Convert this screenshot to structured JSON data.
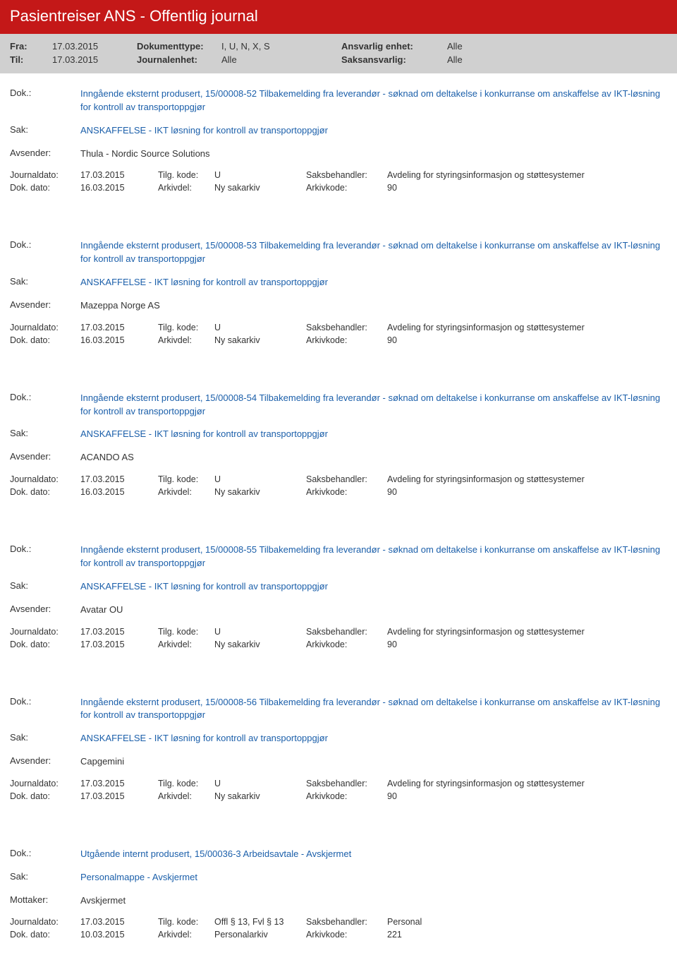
{
  "header": {
    "title": "Pasientreiser ANS - Offentlig journal"
  },
  "filter": {
    "fra_label": "Fra:",
    "fra_value": "17.03.2015",
    "til_label": "Til:",
    "til_value": "17.03.2015",
    "doktype_label": "Dokumenttype:",
    "doktype_value": "I, U, N, X, S",
    "journalenhet_label": "Journalenhet:",
    "journalenhet_value": "Alle",
    "ansvenhet_label": "Ansvarlig enhet:",
    "ansvenhet_value": "Alle",
    "saksansv_label": "Saksansvarlig:",
    "saksansv_value": "Alle"
  },
  "labels": {
    "dok": "Dok.:",
    "sak": "Sak:",
    "avsender": "Avsender:",
    "mottaker": "Mottaker:",
    "journaldato": "Journaldato:",
    "dokdato": "Dok. dato:",
    "tilgkode": "Tilg. kode:",
    "arkivdel": "Arkivdel:",
    "saksbehandler": "Saksbehandler:",
    "arkivkode": "Arkivkode:"
  },
  "entries": [
    {
      "dok": "Inngående eksternt produsert, 15/00008-52 Tilbakemelding fra leverandør - søknad om deltakelse i konkurranse om anskaffelse av IKT-løsning for kontroll av transportoppgjør",
      "sak": "ANSKAFFELSE - IKT løsning for kontroll av transportoppgjør",
      "party_label": "Avsender:",
      "party": "Thula - Nordic Source Solutions",
      "journaldato": "17.03.2015",
      "tilgkode": "U",
      "saksbehandler": "Avdeling for styringsinformasjon og støttesystemer",
      "dokdato": "16.03.2015",
      "arkivdel": "Ny sakarkiv",
      "arkivkode": "90"
    },
    {
      "dok": "Inngående eksternt produsert, 15/00008-53 Tilbakemelding fra leverandør - søknad om deltakelse i konkurranse om anskaffelse av IKT-løsning for kontroll av transportoppgjør",
      "sak": "ANSKAFFELSE - IKT løsning for kontroll av transportoppgjør",
      "party_label": "Avsender:",
      "party": "Mazeppa Norge AS",
      "journaldato": "17.03.2015",
      "tilgkode": "U",
      "saksbehandler": "Avdeling for styringsinformasjon og støttesystemer",
      "dokdato": "16.03.2015",
      "arkivdel": "Ny sakarkiv",
      "arkivkode": "90"
    },
    {
      "dok": "Inngående eksternt produsert, 15/00008-54 Tilbakemelding fra leverandør - søknad om deltakelse i konkurranse om anskaffelse av IKT-løsning for kontroll av transportoppgjør",
      "sak": "ANSKAFFELSE - IKT løsning for kontroll av transportoppgjør",
      "party_label": "Avsender:",
      "party": "ACANDO AS",
      "journaldato": "17.03.2015",
      "tilgkode": "U",
      "saksbehandler": "Avdeling for styringsinformasjon og støttesystemer",
      "dokdato": "16.03.2015",
      "arkivdel": "Ny sakarkiv",
      "arkivkode": "90"
    },
    {
      "dok": "Inngående eksternt produsert, 15/00008-55 Tilbakemelding fra leverandør - søknad om deltakelse i konkurranse om anskaffelse av IKT-løsning for kontroll av transportoppgjør",
      "sak": "ANSKAFFELSE - IKT løsning for kontroll av transportoppgjør",
      "party_label": "Avsender:",
      "party": "Avatar OU",
      "journaldato": "17.03.2015",
      "tilgkode": "U",
      "saksbehandler": "Avdeling for styringsinformasjon og støttesystemer",
      "dokdato": "17.03.2015",
      "arkivdel": "Ny sakarkiv",
      "arkivkode": "90"
    },
    {
      "dok": "Inngående eksternt produsert, 15/00008-56 Tilbakemelding fra leverandør - søknad om deltakelse i konkurranse om anskaffelse av IKT-løsning for kontroll av transportoppgjør",
      "sak": "ANSKAFFELSE - IKT løsning for kontroll av transportoppgjør",
      "party_label": "Avsender:",
      "party": "Capgemini",
      "journaldato": "17.03.2015",
      "tilgkode": "U",
      "saksbehandler": "Avdeling for styringsinformasjon og støttesystemer",
      "dokdato": "17.03.2015",
      "arkivdel": "Ny sakarkiv",
      "arkivkode": "90"
    },
    {
      "dok": "Utgående internt produsert, 15/00036-3 Arbeidsavtale - Avskjermet",
      "sak": "Personalmappe - Avskjermet",
      "party_label": "Mottaker:",
      "party": "Avskjermet",
      "journaldato": "17.03.2015",
      "tilgkode": "Offl § 13, Fvl § 13",
      "saksbehandler": "Personal",
      "dokdato": "10.03.2015",
      "arkivdel": "Personalarkiv",
      "arkivkode": "221"
    }
  ],
  "colors": {
    "header_bg": "#c41818",
    "header_text": "#ffffff",
    "filter_bg": "#d0d0d0",
    "link_blue": "#1b5faa",
    "text": "#333333"
  }
}
